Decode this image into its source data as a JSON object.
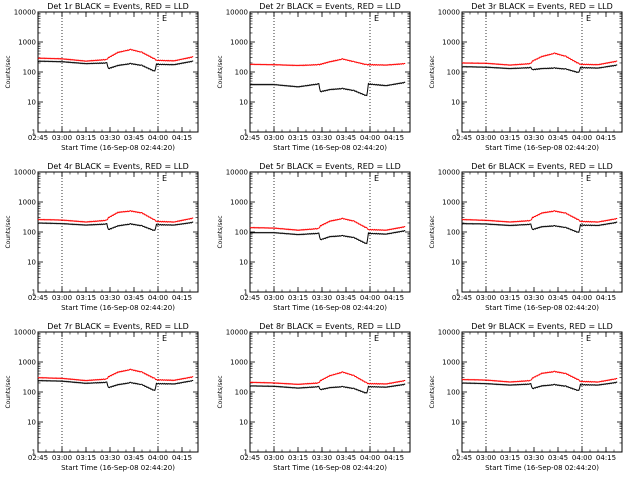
{
  "chart_data": [
    {
      "type": "line",
      "title": "Det 1r BLACK = Events, RED = LLD",
      "xlabel": "Start Time (16-Sep-08 02:44:20)",
      "ylabel": "Counts/sec",
      "yscale": "log",
      "ylim": [
        1,
        10000
      ],
      "xlim": [
        "02:45",
        "04:25"
      ],
      "x_ticks": [
        "02:45",
        "03:00",
        "03:15",
        "03:30",
        "03:45",
        "04:00",
        "04:15"
      ],
      "y_ticks": [
        "1",
        "10",
        "100",
        "1000",
        "10000"
      ],
      "vlines": [
        "03:00",
        "04:00"
      ],
      "annotation": "E",
      "x": [
        "02:45",
        "03:00",
        "03:15",
        "03:28",
        "03:29",
        "03:35",
        "03:43",
        "03:50",
        "03:58",
        "03:59",
        "04:10",
        "04:22"
      ],
      "series": [
        {
          "name": "Events",
          "color": "#000000",
          "values": [
            230,
            220,
            190,
            200,
            130,
            165,
            190,
            165,
            105,
            180,
            175,
            230
          ]
        },
        {
          "name": "LLD",
          "color": "#ff0000",
          "values": [
            290,
            275,
            230,
            260,
            300,
            450,
            560,
            450,
            270,
            245,
            235,
            320
          ]
        }
      ]
    },
    {
      "type": "line",
      "title": "Det 2r BLACK = Events, RED = LLD",
      "xlabel": "Start Time (16-Sep-08 02:44:20)",
      "ylabel": "Counts/sec",
      "yscale": "log",
      "ylim": [
        1,
        10000
      ],
      "xlim": [
        "02:45",
        "04:25"
      ],
      "x_ticks": [
        "02:45",
        "03:00",
        "03:15",
        "03:30",
        "03:45",
        "04:00",
        "04:15"
      ],
      "y_ticks": [
        "1",
        "10",
        "100",
        "1000",
        "10000"
      ],
      "vlines": [
        "03:00",
        "04:00"
      ],
      "annotation": "E",
      "x": [
        "02:45",
        "03:00",
        "03:15",
        "03:28",
        "03:29",
        "03:35",
        "03:43",
        "03:50",
        "03:58",
        "03:59",
        "04:10",
        "04:22"
      ],
      "series": [
        {
          "name": "Events",
          "color": "#000000",
          "values": [
            38,
            38,
            32,
            40,
            22,
            26,
            28,
            24,
            16,
            40,
            35,
            45
          ]
        },
        {
          "name": "LLD",
          "color": "#ff0000",
          "values": [
            180,
            175,
            165,
            175,
            180,
            220,
            270,
            220,
            175,
            175,
            170,
            190
          ]
        }
      ]
    },
    {
      "type": "line",
      "title": "Det 3r BLACK = Events, RED = LLD",
      "xlabel": "Start Time (16-Sep-08 02:44:20)",
      "ylabel": "Counts/sec",
      "yscale": "log",
      "ylim": [
        1,
        10000
      ],
      "xlim": [
        "02:45",
        "04:25"
      ],
      "x_ticks": [
        "02:45",
        "03:00",
        "03:15",
        "03:30",
        "03:45",
        "04:00",
        "04:15"
      ],
      "y_ticks": [
        "1",
        "10",
        "100",
        "1000",
        "10000"
      ],
      "vlines": [
        "03:00",
        "04:00"
      ],
      "annotation": "E",
      "x": [
        "02:45",
        "03:00",
        "03:15",
        "03:28",
        "03:29",
        "03:35",
        "03:43",
        "03:50",
        "03:58",
        "03:59",
        "04:10",
        "04:22"
      ],
      "series": [
        {
          "name": "Events",
          "color": "#000000",
          "values": [
            150,
            145,
            130,
            140,
            120,
            130,
            135,
            125,
            95,
            140,
            135,
            170
          ]
        },
        {
          "name": "LLD",
          "color": "#ff0000",
          "values": [
            200,
            195,
            170,
            190,
            230,
            330,
            420,
            330,
            190,
            180,
            175,
            230
          ]
        }
      ]
    },
    {
      "type": "line",
      "title": "Det 4r BLACK = Events, RED = LLD",
      "xlabel": "Start Time (16-Sep-08 02:44:20)",
      "ylabel": "Counts/sec",
      "yscale": "log",
      "ylim": [
        1,
        10000
      ],
      "xlim": [
        "02:45",
        "04:25"
      ],
      "x_ticks": [
        "02:45",
        "03:00",
        "03:15",
        "03:30",
        "03:45",
        "04:00",
        "04:15"
      ],
      "y_ticks": [
        "1",
        "10",
        "100",
        "1000",
        "10000"
      ],
      "vlines": [
        "03:00",
        "04:00"
      ],
      "annotation": "E",
      "x": [
        "02:45",
        "03:00",
        "03:15",
        "03:28",
        "03:29",
        "03:35",
        "03:43",
        "03:50",
        "03:58",
        "03:59",
        "04:10",
        "04:22"
      ],
      "series": [
        {
          "name": "Events",
          "color": "#000000",
          "values": [
            200,
            190,
            170,
            185,
            120,
            160,
            185,
            160,
            110,
            175,
            170,
            210
          ]
        },
        {
          "name": "LLD",
          "color": "#ff0000",
          "values": [
            260,
            250,
            215,
            245,
            300,
            450,
            500,
            430,
            250,
            225,
            215,
            290
          ]
        }
      ]
    },
    {
      "type": "line",
      "title": "Det 5r BLACK = Events, RED = LLD",
      "xlabel": "Start Time (16-Sep-08 02:44:20)",
      "ylabel": "Counts/sec",
      "yscale": "log",
      "ylim": [
        1,
        10000
      ],
      "xlim": [
        "02:45",
        "04:25"
      ],
      "x_ticks": [
        "02:45",
        "03:00",
        "03:15",
        "03:30",
        "03:45",
        "04:00",
        "04:15"
      ],
      "y_ticks": [
        "1",
        "10",
        "100",
        "1000",
        "10000"
      ],
      "vlines": [
        "03:00",
        "04:00"
      ],
      "annotation": "E",
      "x": [
        "02:45",
        "03:00",
        "03:15",
        "03:28",
        "03:29",
        "03:35",
        "03:43",
        "03:50",
        "03:58",
        "03:59",
        "04:10",
        "04:22"
      ],
      "series": [
        {
          "name": "Events",
          "color": "#000000",
          "values": [
            95,
            95,
            82,
            90,
            55,
            70,
            75,
            65,
            40,
            90,
            85,
            110
          ]
        },
        {
          "name": "LLD",
          "color": "#ff0000",
          "values": [
            140,
            135,
            115,
            130,
            160,
            230,
            280,
            230,
            135,
            120,
            115,
            150
          ]
        }
      ]
    },
    {
      "type": "line",
      "title": "Det 6r BLACK = Events, RED = LLD",
      "xlabel": "Start Time (16-Sep-08 02:44:20)",
      "ylabel": "Counts/sec",
      "yscale": "log",
      "ylim": [
        1,
        10000
      ],
      "xlim": [
        "02:45",
        "04:25"
      ],
      "x_ticks": [
        "02:45",
        "03:00",
        "03:15",
        "03:30",
        "03:45",
        "04:00",
        "04:15"
      ],
      "y_ticks": [
        "1",
        "10",
        "100",
        "1000",
        "10000"
      ],
      "vlines": [
        "03:00",
        "04:00"
      ],
      "annotation": "E",
      "x": [
        "02:45",
        "03:00",
        "03:15",
        "03:28",
        "03:29",
        "03:35",
        "03:43",
        "03:50",
        "03:58",
        "03:59",
        "04:10",
        "04:22"
      ],
      "series": [
        {
          "name": "Events",
          "color": "#000000",
          "values": [
            190,
            185,
            165,
            180,
            120,
            150,
            160,
            140,
            95,
            170,
            165,
            210
          ]
        },
        {
          "name": "LLD",
          "color": "#ff0000",
          "values": [
            260,
            245,
            215,
            240,
            300,
            430,
            500,
            420,
            250,
            225,
            215,
            280
          ]
        }
      ]
    },
    {
      "type": "line",
      "title": "Det 7r BLACK = Events, RED = LLD",
      "xlabel": "Start Time (16-Sep-08 02:44:20)",
      "ylabel": "Counts/sec",
      "yscale": "log",
      "ylim": [
        1,
        10000
      ],
      "xlim": [
        "02:45",
        "04:25"
      ],
      "x_ticks": [
        "02:45",
        "03:00",
        "03:15",
        "03:30",
        "03:45",
        "04:00",
        "04:15"
      ],
      "y_ticks": [
        "1",
        "10",
        "100",
        "1000",
        "10000"
      ],
      "vlines": [
        "03:00",
        "04:00"
      ],
      "annotation": "E",
      "x": [
        "02:45",
        "03:00",
        "03:15",
        "03:28",
        "03:29",
        "03:35",
        "03:43",
        "03:50",
        "03:58",
        "03:59",
        "04:10",
        "04:22"
      ],
      "series": [
        {
          "name": "Events",
          "color": "#000000",
          "values": [
            240,
            230,
            195,
            210,
            140,
            175,
            205,
            175,
            110,
            190,
            185,
            240
          ]
        },
        {
          "name": "LLD",
          "color": "#ff0000",
          "values": [
            300,
            285,
            240,
            270,
            320,
            460,
            560,
            460,
            280,
            255,
            245,
            320
          ]
        }
      ]
    },
    {
      "type": "line",
      "title": "Det 8r BLACK = Events, RED = LLD",
      "xlabel": "Start Time (16-Sep-08 02:44:20)",
      "ylabel": "Counts/sec",
      "yscale": "log",
      "ylim": [
        1,
        10000
      ],
      "xlim": [
        "02:45",
        "04:25"
      ],
      "x_ticks": [
        "02:45",
        "03:00",
        "03:15",
        "03:30",
        "03:45",
        "04:00",
        "04:15"
      ],
      "y_ticks": [
        "1",
        "10",
        "100",
        "1000",
        "10000"
      ],
      "vlines": [
        "03:00",
        "04:00"
      ],
      "annotation": "E",
      "x": [
        "02:45",
        "03:00",
        "03:15",
        "03:28",
        "03:29",
        "03:35",
        "03:43",
        "03:50",
        "03:58",
        "03:59",
        "04:10",
        "04:22"
      ],
      "series": [
        {
          "name": "Events",
          "color": "#000000",
          "values": [
            160,
            155,
            135,
            150,
            120,
            140,
            150,
            130,
            90,
            150,
            145,
            180
          ]
        },
        {
          "name": "LLD",
          "color": "#ff0000",
          "values": [
            210,
            200,
            180,
            200,
            240,
            350,
            460,
            350,
            200,
            190,
            185,
            240
          ]
        }
      ]
    },
    {
      "type": "line",
      "title": "Det 9r BLACK = Events, RED = LLD",
      "xlabel": "Start Time (16-Sep-08 02:44:20)",
      "ylabel": "Counts/sec",
      "yscale": "log",
      "ylim": [
        1,
        10000
      ],
      "xlim": [
        "02:45",
        "04:25"
      ],
      "x_ticks": [
        "02:45",
        "03:00",
        "03:15",
        "03:30",
        "03:45",
        "04:00",
        "04:15"
      ],
      "y_ticks": [
        "1",
        "10",
        "100",
        "1000",
        "10000"
      ],
      "vlines": [
        "03:00",
        "04:00"
      ],
      "annotation": "E",
      "x": [
        "02:45",
        "03:00",
        "03:15",
        "03:28",
        "03:29",
        "03:35",
        "03:43",
        "03:50",
        "03:58",
        "03:59",
        "04:10",
        "04:22"
      ],
      "series": [
        {
          "name": "Events",
          "color": "#000000",
          "values": [
            200,
            190,
            170,
            185,
            130,
            160,
            175,
            155,
            110,
            175,
            170,
            210
          ]
        },
        {
          "name": "LLD",
          "color": "#ff0000",
          "values": [
            260,
            250,
            215,
            240,
            290,
            420,
            480,
            410,
            250,
            225,
            215,
            280
          ]
        }
      ]
    }
  ]
}
